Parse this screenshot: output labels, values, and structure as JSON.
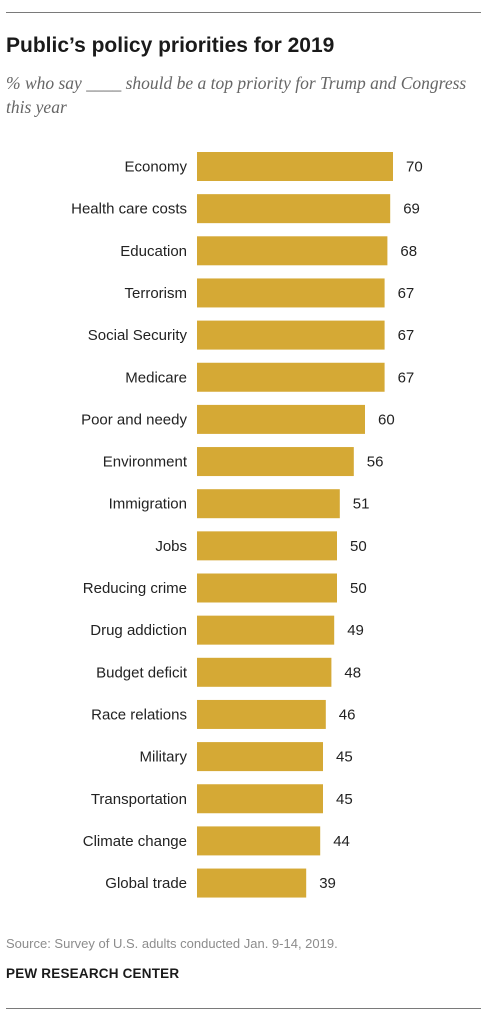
{
  "header": {
    "title": "Public’s policy priorities for 2019",
    "subtitle": "% who say ____ should be a top priority for Trump and Congress this year"
  },
  "footer": {
    "source": "Source: Survey of U.S. adults conducted Jan. 9-14, 2019.",
    "brand": "PEW RESEARCH CENTER"
  },
  "colors": {
    "bar": "#d5a935",
    "label": "#222222"
  },
  "chart_data": {
    "type": "bar",
    "orientation": "horizontal",
    "categories": [
      "Economy",
      "Health care costs",
      "Education",
      "Terrorism",
      "Social Security",
      "Medicare",
      "Poor and needy",
      "Environment",
      "Immigration",
      "Jobs",
      "Reducing crime",
      "Drug addiction",
      "Budget deficit",
      "Race relations",
      "Military",
      "Transportation",
      "Climate change",
      "Global trade"
    ],
    "values": [
      70,
      69,
      68,
      67,
      67,
      67,
      60,
      56,
      51,
      50,
      50,
      49,
      48,
      46,
      45,
      45,
      44,
      39
    ],
    "title": "Public’s policy priorities for 2019",
    "xlabel": "",
    "ylabel": "",
    "xlim": [
      0,
      100
    ],
    "grid": false,
    "legend": "none",
    "value_labels": true
  }
}
